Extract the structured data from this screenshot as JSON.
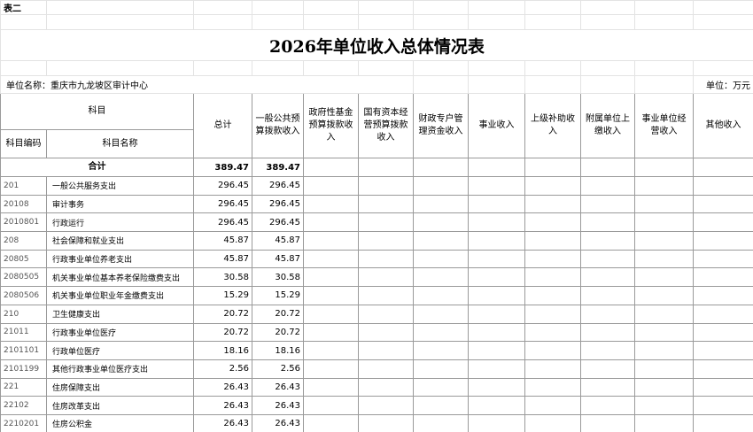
{
  "header": {
    "sheet_label": "表二",
    "title": "2026年单位收入总体情况表",
    "unit_name": "单位名称：重庆市九龙坡区审计中心",
    "unit": "单位：万元"
  },
  "table": {
    "group_header": "科目",
    "code_header": "科目编码",
    "name_header": "科目名称",
    "columns": [
      "总计",
      "一般公共预算拨款收入",
      "政府性基金预算拨款收入",
      "国有资本经营预算拨款收入",
      "财政专户管理资金收入",
      "事业收入",
      "上级补助收入",
      "附属单位上缴收入",
      "事业单位经营收入",
      "其他收入"
    ],
    "total_label": "合计",
    "total": [
      389.47,
      389.47
    ],
    "rows": [
      [
        "201",
        "一般公共服务支出",
        296.45,
        296.45
      ],
      [
        "20108",
        "审计事务",
        296.45,
        296.45
      ],
      [
        "2010801",
        "行政运行",
        296.45,
        296.45
      ],
      [
        "208",
        "社会保障和就业支出",
        45.87,
        45.87
      ],
      [
        "20805",
        "行政事业单位养老支出",
        45.87,
        45.87
      ],
      [
        "2080505",
        "机关事业单位基本养老保险缴费支出",
        30.58,
        30.58
      ],
      [
        "2080506",
        "机关事业单位职业年金缴费支出",
        15.29,
        15.29
      ],
      [
        "210",
        "卫生健康支出",
        20.72,
        20.72
      ],
      [
        "21011",
        "行政事业单位医疗",
        20.72,
        20.72
      ],
      [
        "2101101",
        "行政单位医疗",
        18.16,
        18.16
      ],
      [
        "2101199",
        "其他行政事业单位医疗支出",
        2.56,
        2.56
      ],
      [
        "221",
        "住房保障支出",
        26.43,
        26.43
      ],
      [
        "22102",
        "住房改革支出",
        26.43,
        26.43
      ],
      [
        "2210201",
        "住房公积金",
        26.43,
        26.43
      ]
    ]
  }
}
